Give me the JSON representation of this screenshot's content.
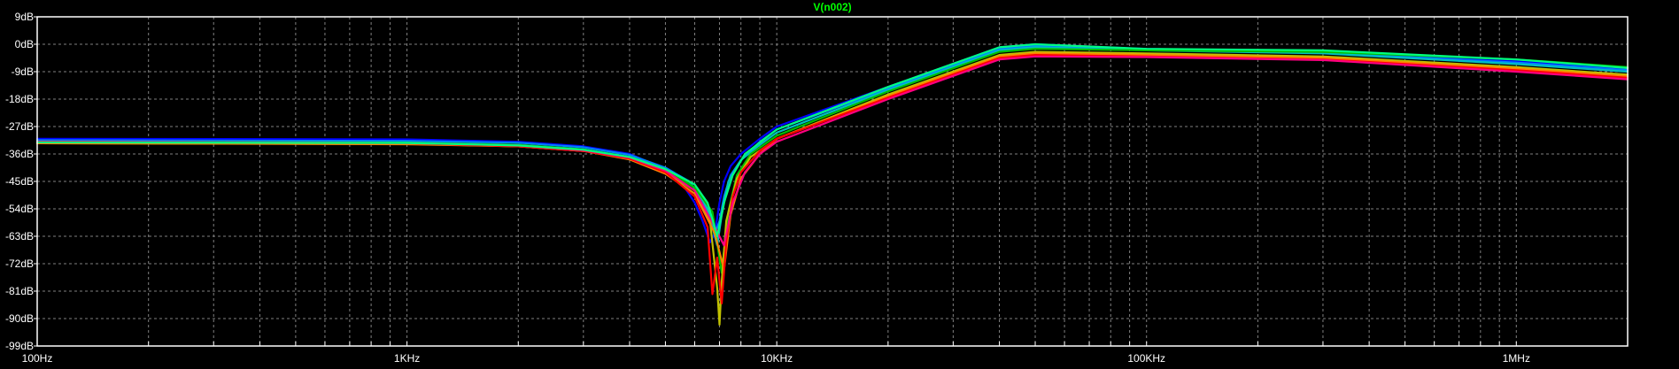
{
  "chart_data": {
    "type": "line",
    "title": "V(n002)",
    "xscale": "log",
    "xlim": [
      100,
      2000000
    ],
    "ylim": [
      -99,
      9
    ],
    "grid": true,
    "x_ticks": [
      {
        "value": 100,
        "label": "100Hz"
      },
      {
        "value": 1000,
        "label": "1KHz"
      },
      {
        "value": 10000,
        "label": "10KHz"
      },
      {
        "value": 100000,
        "label": "100KHz"
      },
      {
        "value": 1000000,
        "label": "1MHz"
      }
    ],
    "y_ticks": [
      {
        "value": 9,
        "label": "9dB"
      },
      {
        "value": 0,
        "label": "0dB"
      },
      {
        "value": -9,
        "label": "-9dB"
      },
      {
        "value": -18,
        "label": "-18dB"
      },
      {
        "value": -27,
        "label": "-27dB"
      },
      {
        "value": -36,
        "label": "-36dB"
      },
      {
        "value": -45,
        "label": "-45dB"
      },
      {
        "value": -54,
        "label": "-54dB"
      },
      {
        "value": -63,
        "label": "-63dB"
      },
      {
        "value": -72,
        "label": "-72dB"
      },
      {
        "value": -81,
        "label": "-81dB"
      },
      {
        "value": -90,
        "label": "-90dB"
      },
      {
        "value": -99,
        "label": "-99dB"
      }
    ],
    "series": [
      {
        "color": "#0000ff",
        "x": [
          100,
          1000,
          2000,
          3000,
          4000,
          5000,
          5500,
          6000,
          6300,
          6600,
          6800,
          7000,
          7200,
          7500,
          8000,
          9000,
          10000,
          20000,
          40000,
          50000,
          100000,
          300000,
          1000000,
          2000000
        ],
        "y": [
          -31,
          -31.2,
          -32,
          -33.5,
          -36,
          -41,
          -45,
          -52,
          -58,
          -65,
          -62,
          -52,
          -45,
          -40,
          -36,
          -31,
          -27,
          -14,
          -1,
          0,
          -1.5,
          -2.5,
          -5.5,
          -8
        ]
      },
      {
        "color": "#0080ff",
        "x": [
          100,
          1000,
          2000,
          3000,
          4000,
          5000,
          5800,
          6300,
          6800,
          7000,
          7200,
          7500,
          8000,
          9000,
          10000,
          20000,
          40000,
          50000,
          100000,
          300000,
          1000000,
          2000000
        ],
        "y": [
          -31.5,
          -31.7,
          -32.3,
          -33.8,
          -36.3,
          -40.5,
          -45,
          -51,
          -62,
          -58,
          -50,
          -43,
          -38,
          -32,
          -28,
          -14.5,
          -1.5,
          -0.5,
          -1.8,
          -2.8,
          -6,
          -8.5
        ]
      },
      {
        "color": "#00c0c0",
        "x": [
          100,
          1000,
          2000,
          3000,
          4000,
          5000,
          6000,
          6500,
          6900,
          7100,
          7400,
          8000,
          9000,
          10000,
          20000,
          40000,
          50000,
          100000,
          300000,
          1000000,
          2000000
        ],
        "y": [
          -32,
          -32.2,
          -33,
          -34.5,
          -37,
          -41,
          -47,
          -54,
          -66,
          -56,
          -45,
          -38,
          -33,
          -29,
          -15,
          -2,
          -1,
          -2,
          -3,
          -6.5,
          -9
        ]
      },
      {
        "color": "#00c000",
        "x": [
          100,
          1000,
          2000,
          3000,
          4000,
          5000,
          6000,
          6700,
          7100,
          7400,
          7800,
          8500,
          10000,
          20000,
          40000,
          50000,
          100000,
          300000,
          1000000,
          2000000
        ],
        "y": [
          -32,
          -32.3,
          -33,
          -34.5,
          -37,
          -41,
          -47,
          -55,
          -75,
          -55,
          -43,
          -36,
          -30,
          -15.5,
          -2.5,
          -1.5,
          -2,
          -2.5,
          -5,
          -7.5
        ]
      },
      {
        "color": "#c0c000",
        "x": [
          100,
          1000,
          2000,
          3000,
          4000,
          5000,
          6000,
          6600,
          6900,
          7000,
          7100,
          7300,
          7800,
          8500,
          10000,
          20000,
          40000,
          50000,
          100000,
          300000,
          1000000,
          2000000
        ],
        "y": [
          -32.5,
          -32.7,
          -33.5,
          -35,
          -37.5,
          -42,
          -48,
          -58,
          -80,
          -92,
          -78,
          -58,
          -44,
          -37,
          -31,
          -16.5,
          -3.5,
          -2.5,
          -3,
          -4,
          -7.5,
          -10
        ]
      },
      {
        "color": "#ff8000",
        "x": [
          100,
          1000,
          2000,
          3000,
          4000,
          5000,
          6000,
          6800,
          7200,
          7500,
          8000,
          9000,
          10000,
          20000,
          40000,
          50000,
          100000,
          300000,
          1000000,
          2000000
        ],
        "y": [
          -32.5,
          -32.8,
          -33.5,
          -35,
          -37.8,
          -42.5,
          -49,
          -62,
          -74,
          -56,
          -44,
          -36,
          -31,
          -17,
          -4,
          -3,
          -3.5,
          -4.5,
          -8,
          -10.5
        ]
      },
      {
        "color": "#ff0000",
        "x": [
          100,
          1000,
          2000,
          3000,
          4000,
          5000,
          6000,
          6500,
          6700,
          6900,
          7100,
          7300,
          7600,
          8000,
          9000,
          10000,
          20000,
          40000,
          50000,
          100000,
          300000,
          1000000,
          2000000
        ],
        "y": [
          -32,
          -32.5,
          -33.5,
          -35,
          -37.5,
          -42,
          -50,
          -60,
          -82,
          -70,
          -85,
          -65,
          -50,
          -42,
          -35,
          -31,
          -17.5,
          -4.5,
          -3.5,
          -4,
          -5,
          -8.5,
          -11
        ]
      },
      {
        "color": "#ff0080",
        "x": [
          100,
          1000,
          2000,
          3000,
          4000,
          5000,
          6000,
          6800,
          7200,
          7600,
          8200,
          9000,
          10000,
          20000,
          40000,
          50000,
          100000,
          300000,
          1000000,
          2000000
        ],
        "y": [
          -32,
          -32.4,
          -33.2,
          -34.8,
          -37.2,
          -41.5,
          -48,
          -60,
          -66,
          -52,
          -42,
          -36,
          -32,
          -18,
          -5,
          -4,
          -4.2,
          -5.2,
          -9,
          -11.5
        ]
      },
      {
        "color": "#00ff80",
        "x": [
          100,
          1000,
          2000,
          3000,
          4000,
          5000,
          6000,
          6500,
          6900,
          7200,
          7600,
          8200,
          10000,
          20000,
          40000,
          50000,
          100000,
          300000,
          1000000,
          2000000
        ],
        "y": [
          -32.2,
          -32.4,
          -33.2,
          -34.6,
          -37,
          -41,
          -46,
          -52,
          -63,
          -52,
          -43,
          -36,
          -28,
          -14,
          -1,
          0,
          -1.5,
          -2,
          -5,
          -7.8
        ]
      }
    ]
  }
}
